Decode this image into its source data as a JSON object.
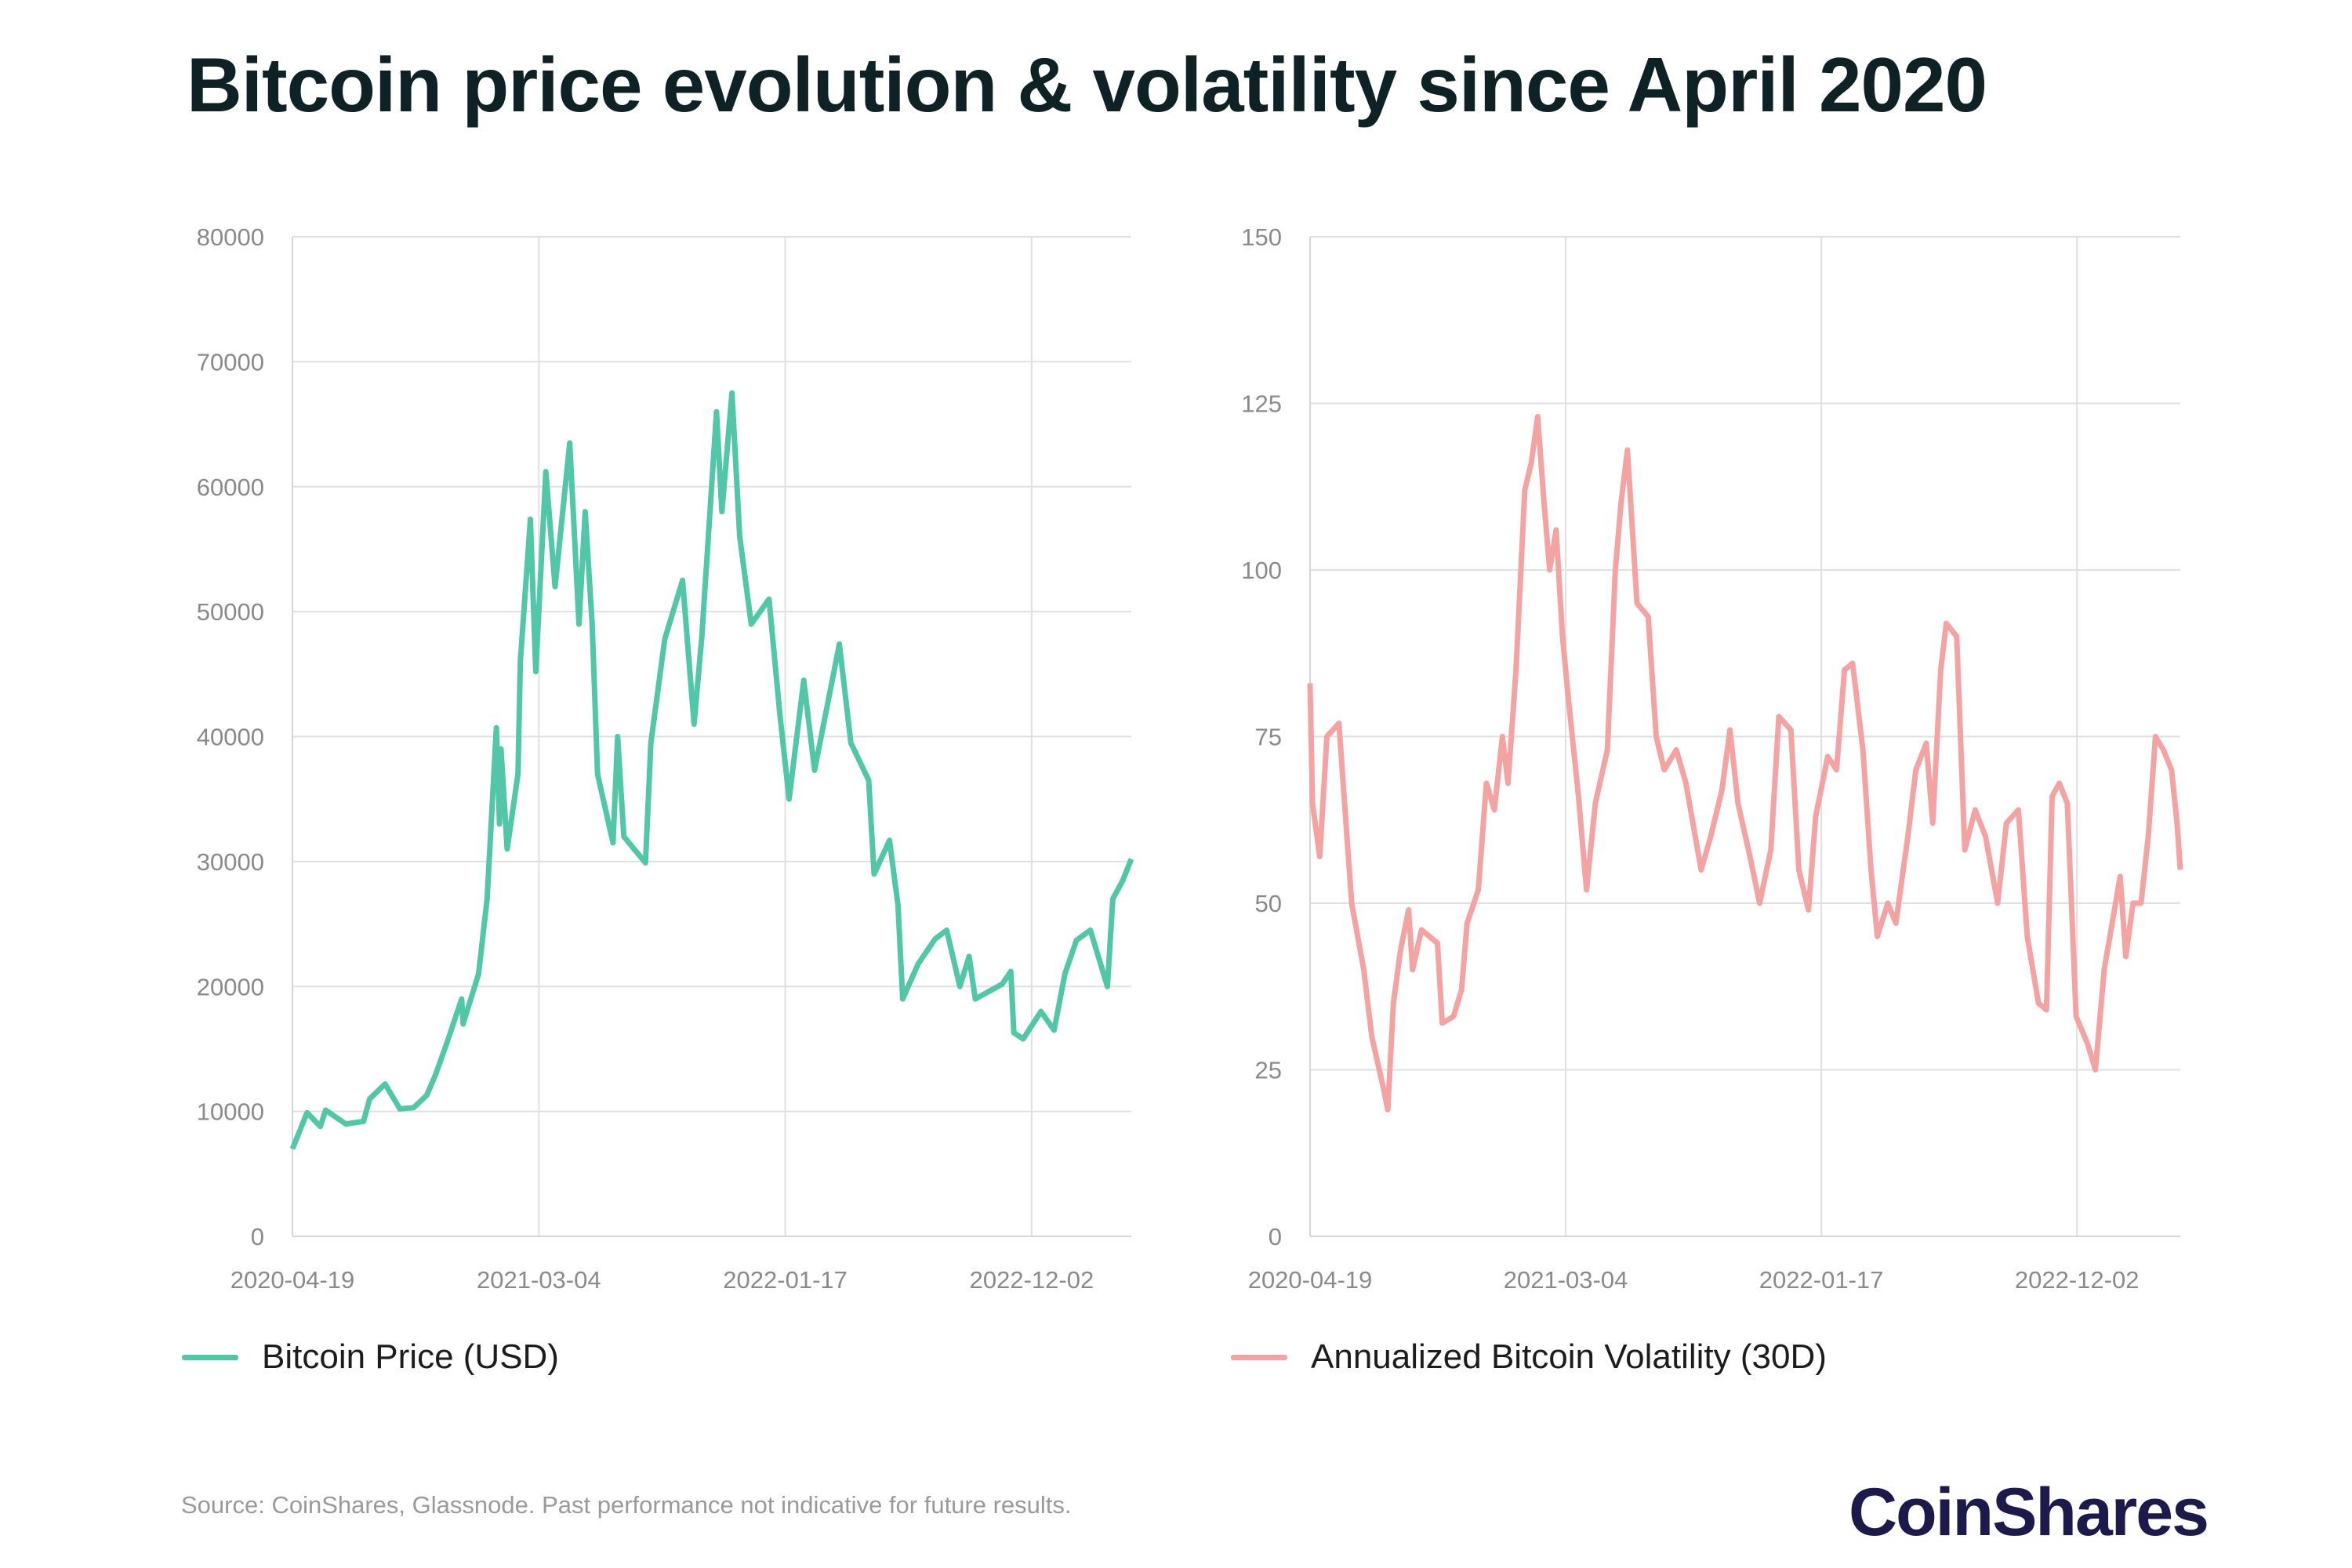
{
  "title": "Bitcoin price evolution & volatility since April 2020",
  "source": "Source: CoinShares, Glassnode. Past performance not indicative for future results.",
  "logo_text": "CoinShares",
  "chart_data": [
    {
      "type": "line",
      "title": "",
      "xlabel": "",
      "ylabel": "",
      "color": "#52C7A8",
      "legend": "Bitcoin Price (USD)",
      "legend_position": "bottom-left",
      "grid": true,
      "xlim": [
        "2020-04-19",
        "2023-04-10"
      ],
      "ylim": [
        0,
        80000
      ],
      "x_ticks": [
        "2020-04-19",
        "2021-03-04",
        "2022-01-17",
        "2022-12-02"
      ],
      "y_ticks": [
        0,
        10000,
        20000,
        30000,
        40000,
        50000,
        60000,
        70000,
        80000
      ],
      "series": [
        {
          "name": "Bitcoin Price (USD)",
          "x": [
            "2020-04-19",
            "2020-05-08",
            "2020-05-25",
            "2020-06-01",
            "2020-06-27",
            "2020-07-20",
            "2020-07-28",
            "2020-08-17",
            "2020-09-05",
            "2020-09-23",
            "2020-10-10",
            "2020-10-21",
            "2020-11-05",
            "2020-11-24",
            "2020-11-26",
            "2020-12-16",
            "2020-12-27",
            "2021-01-08",
            "2021-01-12",
            "2021-01-14",
            "2021-01-22",
            "2021-02-05",
            "2021-02-08",
            "2021-02-21",
            "2021-02-28",
            "2021-03-13",
            "2021-03-25",
            "2021-04-13",
            "2021-04-25",
            "2021-05-03",
            "2021-05-12",
            "2021-05-19",
            "2021-06-08",
            "2021-06-14",
            "2021-06-22",
            "2021-07-20",
            "2021-07-27",
            "2021-08-14",
            "2021-09-06",
            "2021-09-21",
            "2021-10-01",
            "2021-10-20",
            "2021-10-27",
            "2021-11-09",
            "2021-11-19",
            "2021-12-04",
            "2021-12-27",
            "2022-01-10",
            "2022-01-22",
            "2022-02-10",
            "2022-02-24",
            "2022-03-28",
            "2022-04-12",
            "2022-05-05",
            "2022-05-12",
            "2022-06-01",
            "2022-06-12",
            "2022-06-18",
            "2022-07-08",
            "2022-07-30",
            "2022-08-14",
            "2022-08-31",
            "2022-09-12",
            "2022-09-20",
            "2022-10-25",
            "2022-11-05",
            "2022-11-09",
            "2022-11-21",
            "2022-12-14",
            "2022-12-31",
            "2023-01-14",
            "2023-01-29",
            "2023-02-16",
            "2023-03-10",
            "2023-03-17",
            "2023-03-30",
            "2023-04-10"
          ],
          "values": [
            7000,
            9900,
            8800,
            10100,
            9000,
            9200,
            11000,
            12200,
            10200,
            10300,
            11300,
            12900,
            15500,
            19000,
            17000,
            21000,
            27000,
            40700,
            33000,
            39000,
            31000,
            37000,
            46000,
            57400,
            45200,
            61200,
            52000,
            63500,
            49000,
            58000,
            49000,
            37000,
            31500,
            40000,
            32000,
            29900,
            39500,
            47800,
            52500,
            41000,
            48000,
            66000,
            58000,
            67500,
            56000,
            49000,
            51000,
            41800,
            35000,
            44500,
            37300,
            47400,
            39500,
            36500,
            29000,
            31700,
            26500,
            19000,
            21800,
            23800,
            24500,
            20000,
            22400,
            19000,
            20200,
            21200,
            16300,
            15800,
            18000,
            16500,
            21000,
            23700,
            24500,
            20000,
            27000,
            28500,
            30200
          ]
        }
      ]
    },
    {
      "type": "line",
      "title": "",
      "xlabel": "",
      "ylabel": "",
      "color": "#F4A3A3",
      "legend": "Annualized Bitcoin Volatility (30D)",
      "legend_position": "bottom-left",
      "grid": true,
      "xlim": [
        "2020-04-19",
        "2023-04-10"
      ],
      "ylim": [
        0,
        150
      ],
      "x_ticks": [
        "2020-04-19",
        "2021-03-04",
        "2022-01-17",
        "2022-12-02"
      ],
      "y_ticks": [
        0,
        25,
        50,
        75,
        100,
        125,
        150
      ],
      "series": [
        {
          "name": "Annualized Bitcoin Volatility (30D)",
          "x": [
            "2020-04-19",
            "2020-04-22",
            "2020-05-01",
            "2020-05-10",
            "2020-05-25",
            "2020-06-01",
            "2020-06-10",
            "2020-06-25",
            "2020-07-05",
            "2020-07-20",
            "2020-07-25",
            "2020-08-01",
            "2020-08-10",
            "2020-08-20",
            "2020-08-25",
            "2020-09-05",
            "2020-09-25",
            "2020-10-01",
            "2020-10-15",
            "2020-10-25",
            "2020-11-01",
            "2020-11-15",
            "2020-11-25",
            "2020-12-05",
            "2020-12-15",
            "2020-12-22",
            "2021-01-01",
            "2021-01-12",
            "2021-01-20",
            "2021-01-28",
            "2021-02-05",
            "2021-02-12",
            "2021-02-20",
            "2021-02-28",
            "2021-03-08",
            "2021-03-20",
            "2021-03-30",
            "2021-04-10",
            "2021-04-25",
            "2021-05-05",
            "2021-05-12",
            "2021-05-20",
            "2021-06-01",
            "2021-06-15",
            "2021-06-25",
            "2021-07-05",
            "2021-07-20",
            "2021-08-01",
            "2021-08-20",
            "2021-09-01",
            "2021-09-15",
            "2021-09-25",
            "2021-10-05",
            "2021-10-20",
            "2021-11-01",
            "2021-11-15",
            "2021-11-25",
            "2021-12-10",
            "2021-12-20",
            "2022-01-01",
            "2022-01-10",
            "2022-01-25",
            "2022-02-05",
            "2022-02-15",
            "2022-02-25",
            "2022-03-10",
            "2022-03-20",
            "2022-03-28",
            "2022-04-10",
            "2022-04-20",
            "2022-05-05",
            "2022-05-15",
            "2022-05-28",
            "2022-06-05",
            "2022-06-15",
            "2022-06-22",
            "2022-07-05",
            "2022-07-15",
            "2022-07-28",
            "2022-08-10",
            "2022-08-25",
            "2022-09-05",
            "2022-09-20",
            "2022-10-01",
            "2022-10-15",
            "2022-10-25",
            "2022-11-01",
            "2022-11-10",
            "2022-11-20",
            "2022-12-01",
            "2022-12-15",
            "2022-12-25",
            "2023-01-05",
            "2023-01-15",
            "2023-01-25",
            "2023-02-01",
            "2023-02-10",
            "2023-02-20",
            "2023-03-01",
            "2023-03-10",
            "2023-03-20",
            "2023-03-30",
            "2023-04-06",
            "2023-04-10"
          ],
          "values": [
            83,
            65,
            57,
            75,
            77,
            65,
            50,
            40,
            30,
            22,
            19,
            35,
            43,
            49,
            40,
            46,
            44,
            32,
            33,
            37,
            47,
            52,
            68,
            64,
            75,
            68,
            85,
            112,
            116,
            123,
            110,
            100,
            106,
            90,
            80,
            66,
            52,
            65,
            73,
            100,
            110,
            118,
            95,
            93,
            75,
            70,
            73,
            68,
            55,
            60,
            67,
            76,
            65,
            57,
            50,
            58,
            78,
            76,
            55,
            49,
            63,
            72,
            70,
            85,
            86,
            73,
            55,
            45,
            50,
            47,
            60,
            70,
            74,
            62,
            85,
            92,
            90,
            58,
            64,
            60,
            50,
            62,
            64,
            45,
            35,
            34,
            66,
            68,
            65,
            33,
            29,
            25,
            40,
            47,
            54,
            42,
            50,
            50,
            60,
            75,
            73,
            70,
            62,
            55
          ]
        }
      ]
    }
  ]
}
